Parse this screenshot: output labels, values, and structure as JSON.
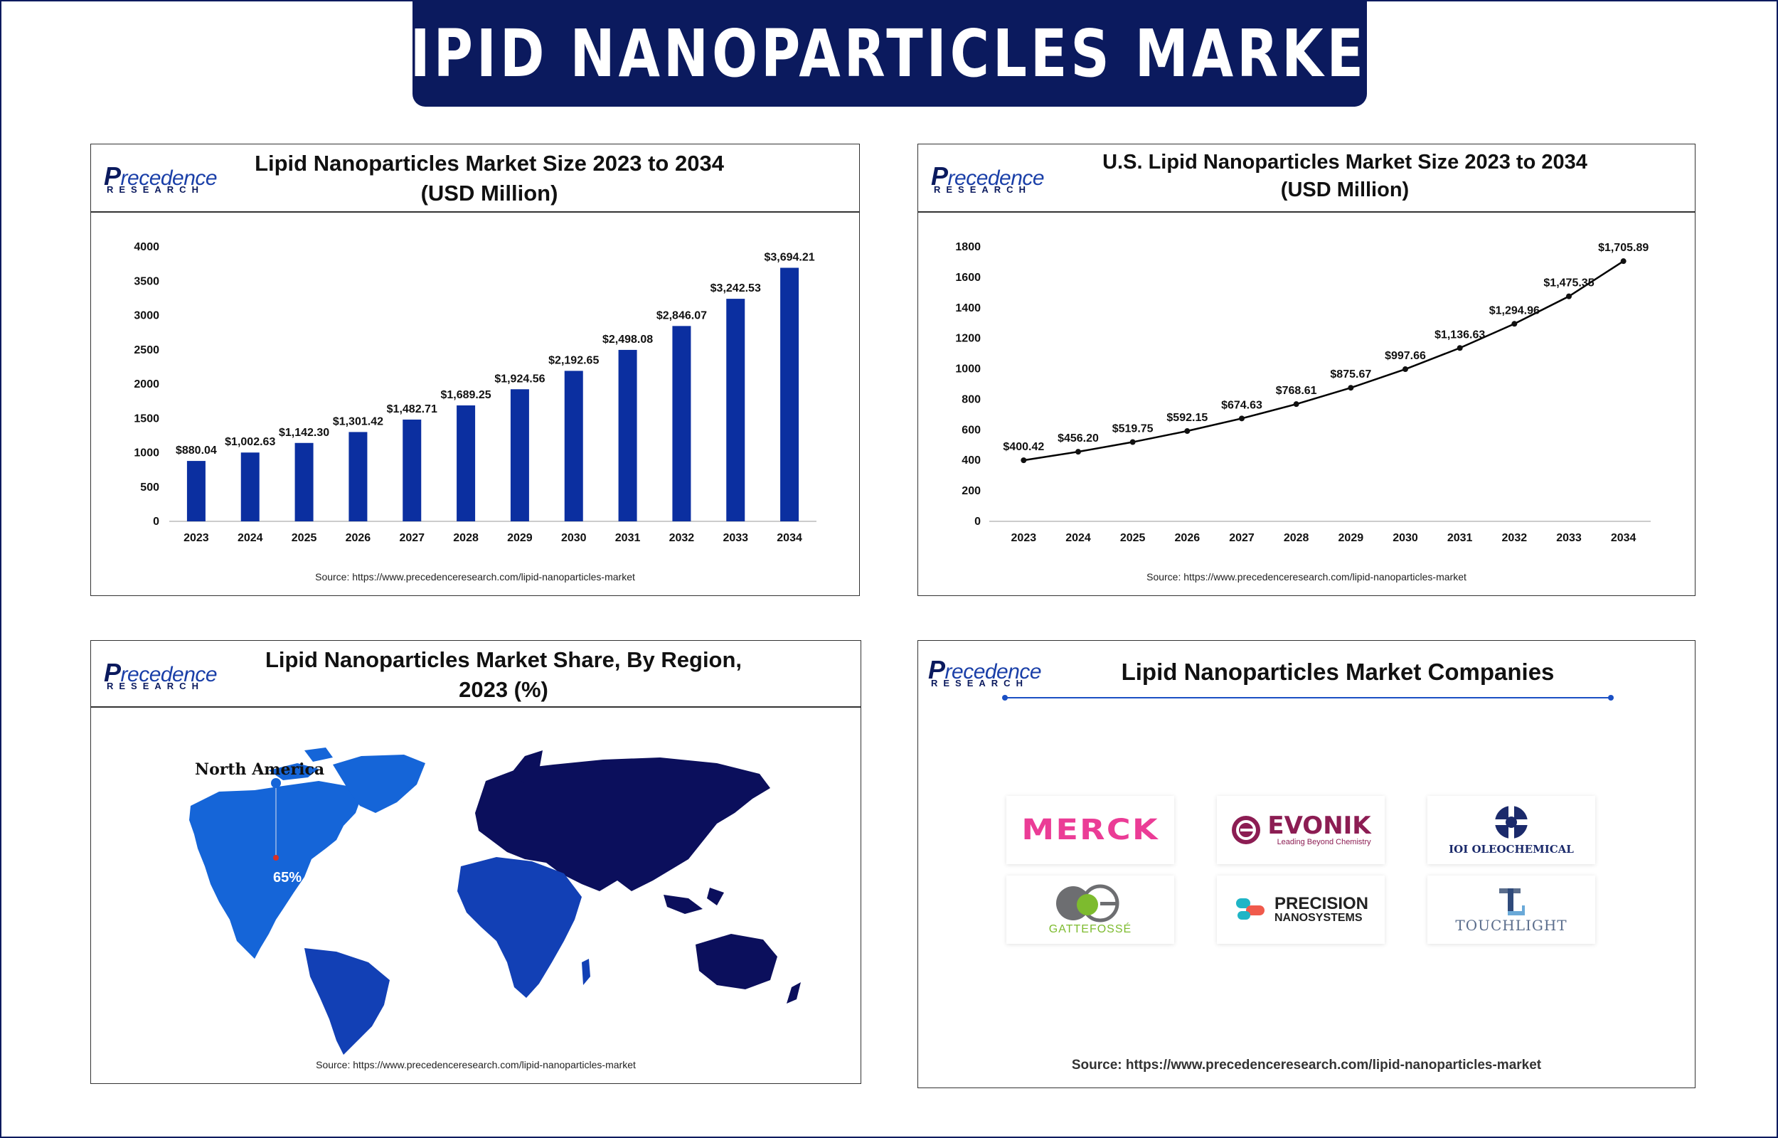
{
  "header": {
    "title": "LIPID NANOPARTICLES MARKET"
  },
  "logo": {
    "main_cap": "P",
    "main_rest": "recedence",
    "sub": "RESEARCH"
  },
  "colors": {
    "navy": "#0b1a5e",
    "bar_blue": "#0b2fa0",
    "north_america": "#1565d8",
    "land_dark": "#0b0f5c"
  },
  "panels": {
    "market_size": {
      "title_line1": "Lipid Nanoparticles Market Size 2023 to 2034",
      "title_line2": "(USD Million)",
      "source": "Source: https://www.precedenceresearch.com/lipid-nanoparticles-market"
    },
    "us_market_size": {
      "title_line1": "U.S. Lipid Nanoparticles Market Size 2023 to 2034",
      "title_line2": "(USD Million)",
      "source": "Source: https://www.precedenceresearch.com/lipid-nanoparticles-market"
    },
    "region_share": {
      "title_line1": "Lipid Nanoparticles Market Share, By Region,",
      "title_line2": "2023 (%)",
      "region_label": "North America",
      "region_value": "65%",
      "source": "Source: https://www.precedenceresearch.com/lipid-nanoparticles-market"
    },
    "companies": {
      "title": "Lipid Nanoparticles Market Companies",
      "source": "Source: https://www.precedenceresearch.com/lipid-nanoparticles-market",
      "list": [
        {
          "name": "MERCK",
          "icon": "merck-logo"
        },
        {
          "name": "EVONIK",
          "tagline": "Leading Beyond Chemistry",
          "icon": "evonik-logo"
        },
        {
          "name": "IOI OLEOCHEMICAL",
          "icon": "ioi-logo"
        },
        {
          "name": "GATTEFOSSÉ",
          "icon": "gattefosse-logo"
        },
        {
          "name": "PRECISION",
          "name2": "NANOSYSTEMS",
          "icon": "precision-logo"
        },
        {
          "name": "TOUCHLIGHT",
          "icon": "touchlight-logo"
        }
      ]
    }
  },
  "chart_data": [
    {
      "type": "bar",
      "title": "Lipid Nanoparticles Market Size 2023 to 2034 (USD Million)",
      "categories": [
        "2023",
        "2024",
        "2025",
        "2026",
        "2027",
        "2028",
        "2029",
        "2030",
        "2031",
        "2032",
        "2033",
        "2034"
      ],
      "values": [
        880.04,
        1002.63,
        1142.3,
        1301.42,
        1482.71,
        1689.25,
        1924.56,
        2192.65,
        2498.08,
        2846.07,
        3242.53,
        3694.21
      ],
      "labels": [
        "$880.04",
        "$1,002.63",
        "$1,142.30",
        "$1,301.42",
        "$1,482.71",
        "$1,689.25",
        "$1,924.56",
        "$2,192.65",
        "$2,498.08",
        "$2,846.07",
        "$3,242.53",
        "$3,694.21"
      ],
      "yticks": [
        0,
        500,
        1000,
        1500,
        2000,
        2500,
        3000,
        3500,
        4000
      ],
      "ylim": [
        0,
        4000
      ],
      "color": "#0b2fa0"
    },
    {
      "type": "line",
      "title": "U.S. Lipid Nanoparticles Market Size 2023 to 2034 (USD Million)",
      "categories": [
        "2023",
        "2024",
        "2025",
        "2026",
        "2027",
        "2028",
        "2029",
        "2030",
        "2031",
        "2032",
        "2033",
        "2034"
      ],
      "values": [
        400.42,
        456.2,
        519.75,
        592.15,
        674.63,
        768.61,
        875.67,
        997.66,
        1136.63,
        1294.96,
        1475.35,
        1705.89
      ],
      "labels": [
        "$400.42",
        "$456.20",
        "$519.75",
        "$592.15",
        "$674.63",
        "$768.61",
        "$875.67",
        "$997.66",
        "$1,136.63",
        "$1,294.96",
        "$1,475.35",
        "$1,705.89"
      ],
      "yticks": [
        0,
        200,
        400,
        600,
        800,
        1000,
        1200,
        1400,
        1600,
        1800
      ],
      "ylim": [
        0,
        1800
      ],
      "color": "#000000"
    },
    {
      "type": "map",
      "title": "Lipid Nanoparticles Market Share, By Region, 2023 (%)",
      "regions": [
        {
          "name": "North America",
          "value": 65
        }
      ]
    }
  ]
}
